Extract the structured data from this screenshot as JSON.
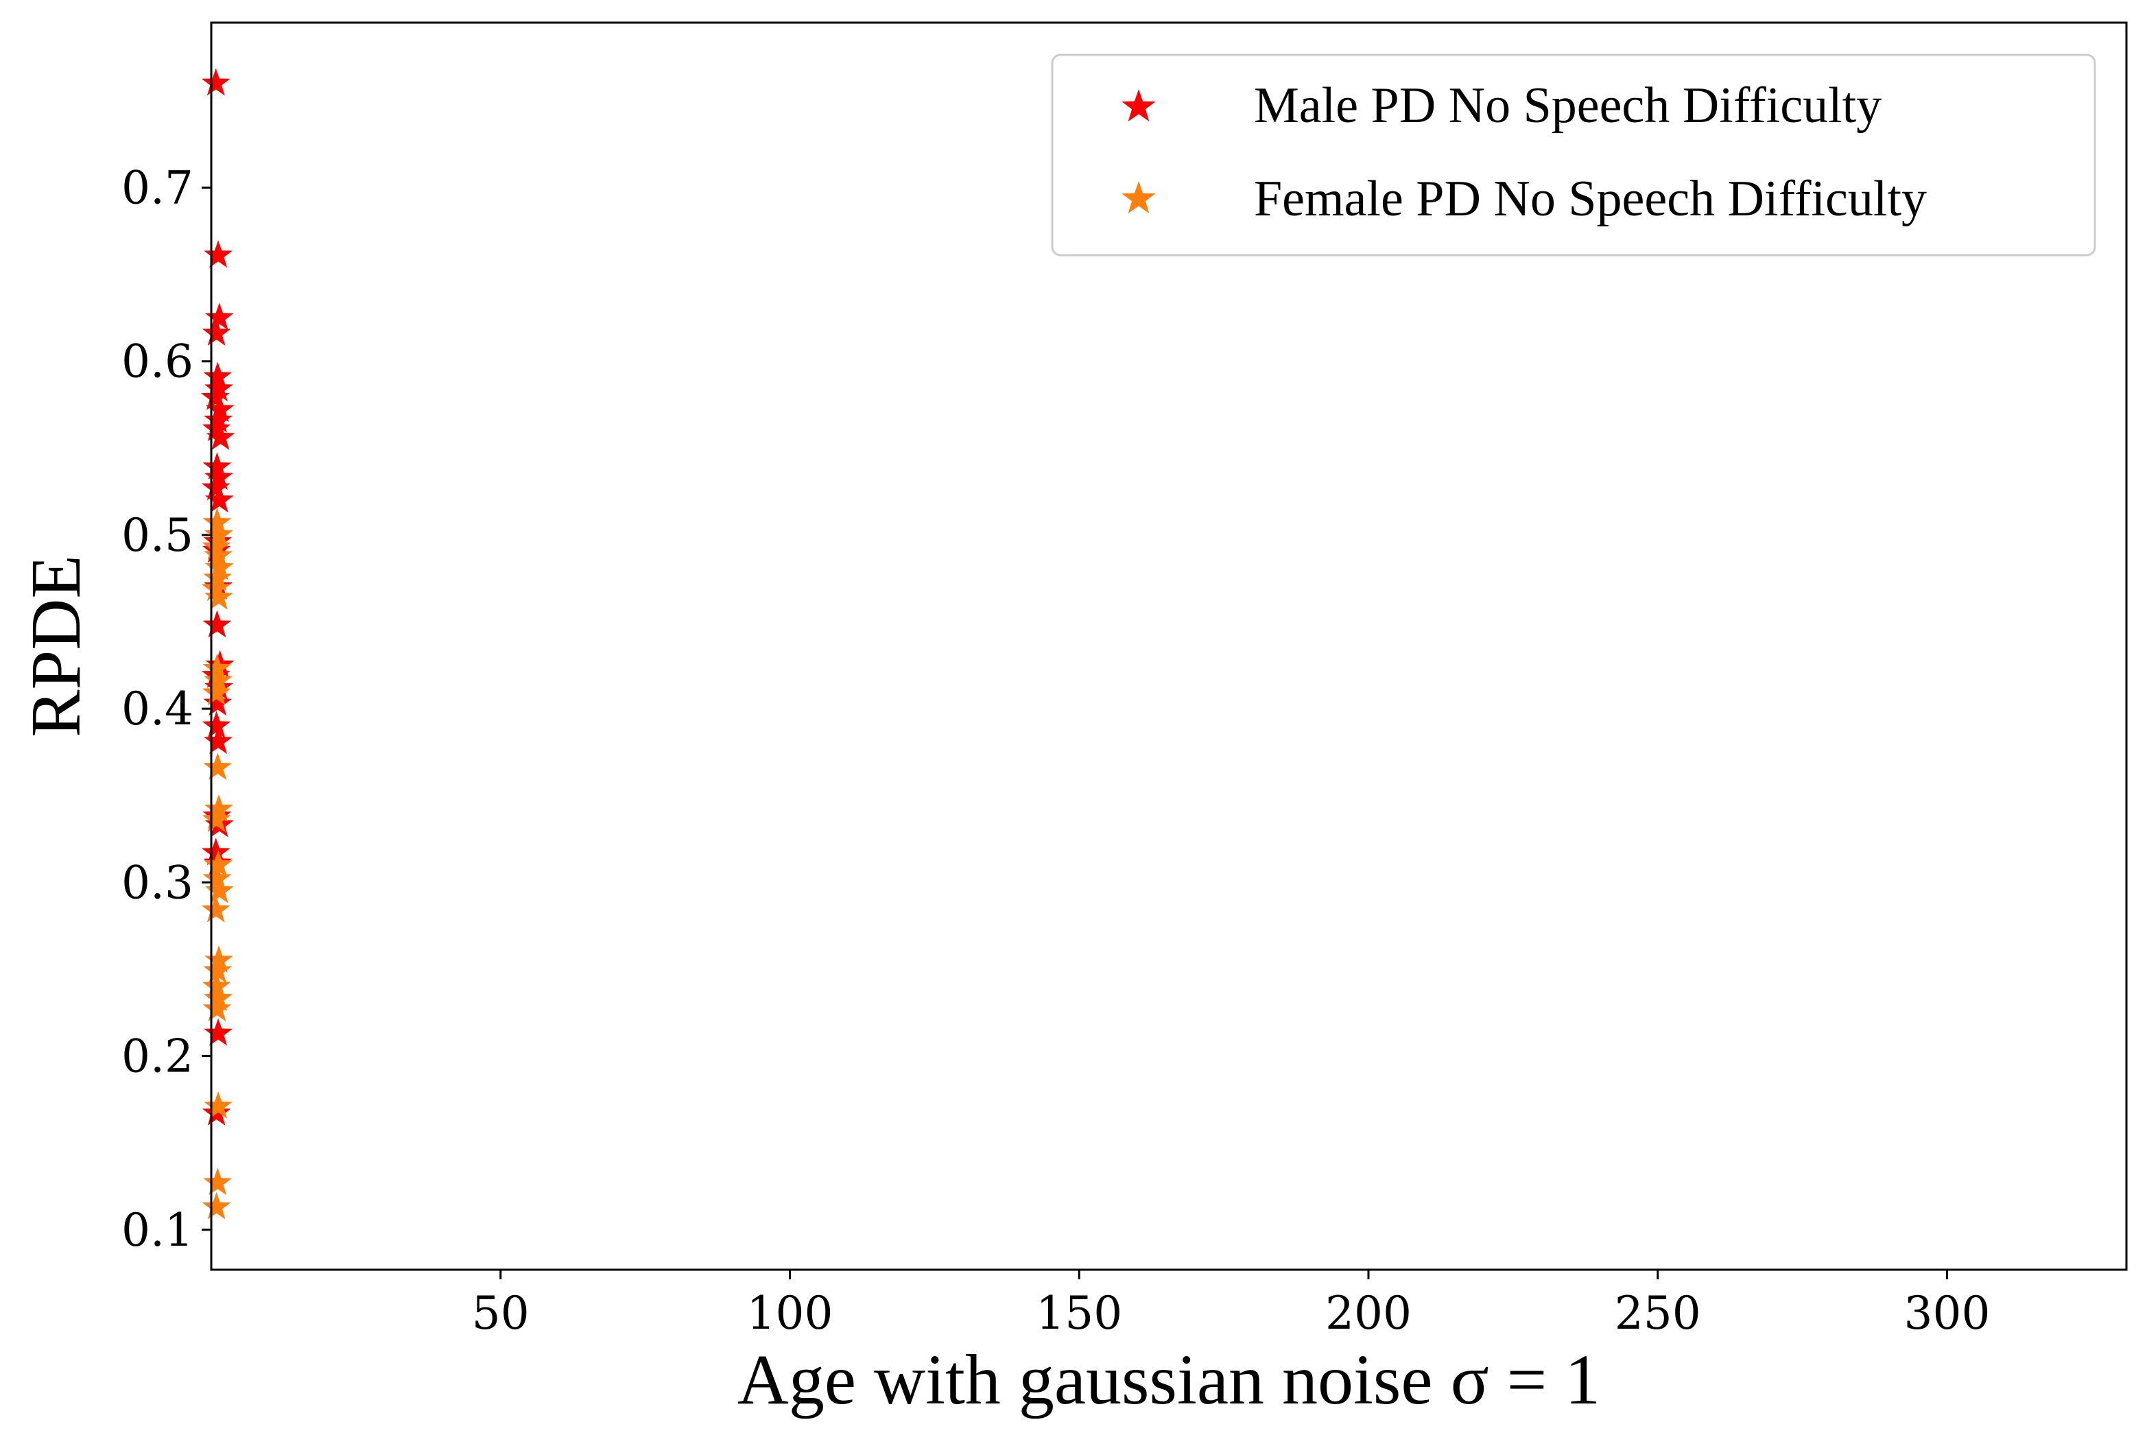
{
  "chart_data": {
    "type": "scatter",
    "title": "",
    "xlabel": "Age with gaussian noise σ = 1",
    "ylabel": "RPDE",
    "xlim": [
      0,
      331
    ],
    "ylim": [
      0.077,
      0.795
    ],
    "xticks": [
      50,
      100,
      150,
      200,
      250,
      300
    ],
    "yticks": [
      0.1,
      0.2,
      0.3,
      0.4,
      0.5,
      0.6,
      0.7
    ],
    "grid": false,
    "legend_position": "top-right",
    "marker": "star",
    "series": [
      {
        "name": "Male PD No Speech Difficulty",
        "color": "#ff0000",
        "points": [
          [
            0.8,
            0.76
          ],
          [
            1.2,
            0.661
          ],
          [
            1.4,
            0.625
          ],
          [
            0.9,
            0.616
          ],
          [
            1.1,
            0.591
          ],
          [
            1.3,
            0.584
          ],
          [
            0.7,
            0.579
          ],
          [
            1.5,
            0.572
          ],
          [
            1.2,
            0.566
          ],
          [
            0.9,
            0.561
          ],
          [
            1.6,
            0.556
          ],
          [
            1.0,
            0.539
          ],
          [
            1.3,
            0.533
          ],
          [
            0.8,
            0.527
          ],
          [
            1.4,
            0.52
          ],
          [
            1.1,
            0.496
          ],
          [
            0.9,
            0.491
          ],
          [
            1.2,
            0.47
          ],
          [
            1.0,
            0.448
          ],
          [
            1.5,
            0.425
          ],
          [
            0.8,
            0.419
          ],
          [
            1.3,
            0.412
          ],
          [
            1.1,
            0.403
          ],
          [
            0.9,
            0.39
          ],
          [
            1.2,
            0.381
          ],
          [
            1.0,
            0.338
          ],
          [
            1.4,
            0.333
          ],
          [
            0.8,
            0.317
          ],
          [
            1.1,
            0.311
          ],
          [
            1.2,
            0.213
          ],
          [
            0.9,
            0.167
          ]
        ]
      },
      {
        "name": "Female PD No Speech Difficulty",
        "color": "#ff7f0e",
        "points": [
          [
            1.0,
            0.507
          ],
          [
            1.3,
            0.5
          ],
          [
            0.9,
            0.493
          ],
          [
            1.2,
            0.488
          ],
          [
            1.4,
            0.481
          ],
          [
            1.1,
            0.475
          ],
          [
            0.8,
            0.469
          ],
          [
            1.3,
            0.464
          ],
          [
            1.0,
            0.423
          ],
          [
            1.2,
            0.416
          ],
          [
            0.9,
            0.409
          ],
          [
            1.1,
            0.366
          ],
          [
            1.3,
            0.342
          ],
          [
            0.9,
            0.336
          ],
          [
            1.2,
            0.31
          ],
          [
            1.0,
            0.302
          ],
          [
            1.4,
            0.295
          ],
          [
            0.8,
            0.284
          ],
          [
            1.3,
            0.255
          ],
          [
            1.1,
            0.249
          ],
          [
            0.9,
            0.24
          ],
          [
            1.2,
            0.233
          ],
          [
            1.0,
            0.227
          ],
          [
            1.2,
            0.171
          ],
          [
            1.1,
            0.127
          ],
          [
            0.9,
            0.113
          ]
        ]
      }
    ]
  }
}
